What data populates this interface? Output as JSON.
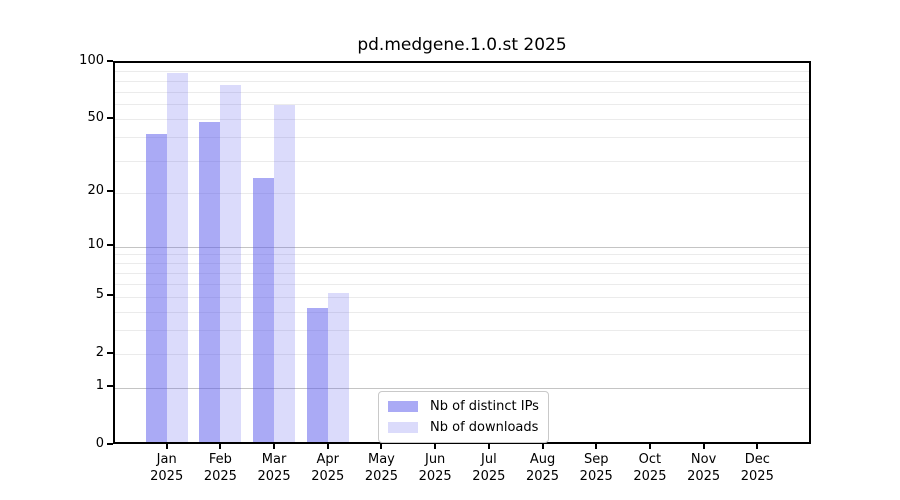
{
  "figure": {
    "background": "#ffffff"
  },
  "chart_data": {
    "type": "bar",
    "title": "pd.medgene.1.0.st 2025",
    "year_label": "2025",
    "categories": [
      "Jan",
      "Feb",
      "Mar",
      "Apr",
      "May",
      "Jun",
      "Jul",
      "Aug",
      "Sep",
      "Oct",
      "Nov",
      "Dec"
    ],
    "series": [
      {
        "name": "Nb of distinct IPs",
        "color": "#5555eb80",
        "values": [
          40,
          46,
          23,
          4,
          null,
          null,
          null,
          null,
          null,
          null,
          null,
          null
        ]
      },
      {
        "name": "Nb of downloads",
        "color": "#5555eb36",
        "values": [
          84,
          73,
          57,
          5,
          null,
          null,
          null,
          null,
          null,
          null,
          null,
          null
        ]
      }
    ],
    "xlabel": "",
    "ylabel": "",
    "y_scale": "log1p",
    "ylim": [
      0,
      100
    ],
    "y_ticks": [
      0,
      1,
      2,
      5,
      10,
      20,
      50,
      100
    ],
    "grid_major_values": [
      1,
      10
    ],
    "grid_minor_values": [
      2,
      3,
      4,
      5,
      6,
      7,
      8,
      9,
      20,
      30,
      40,
      50,
      60,
      70,
      80,
      90
    ],
    "grid_major_color": "#c4c4c4",
    "grid_minor_color": "#ebebeb",
    "spine_color": "#000000",
    "legend_position": "lower center",
    "legend_border_color": "#c9c9c9"
  }
}
